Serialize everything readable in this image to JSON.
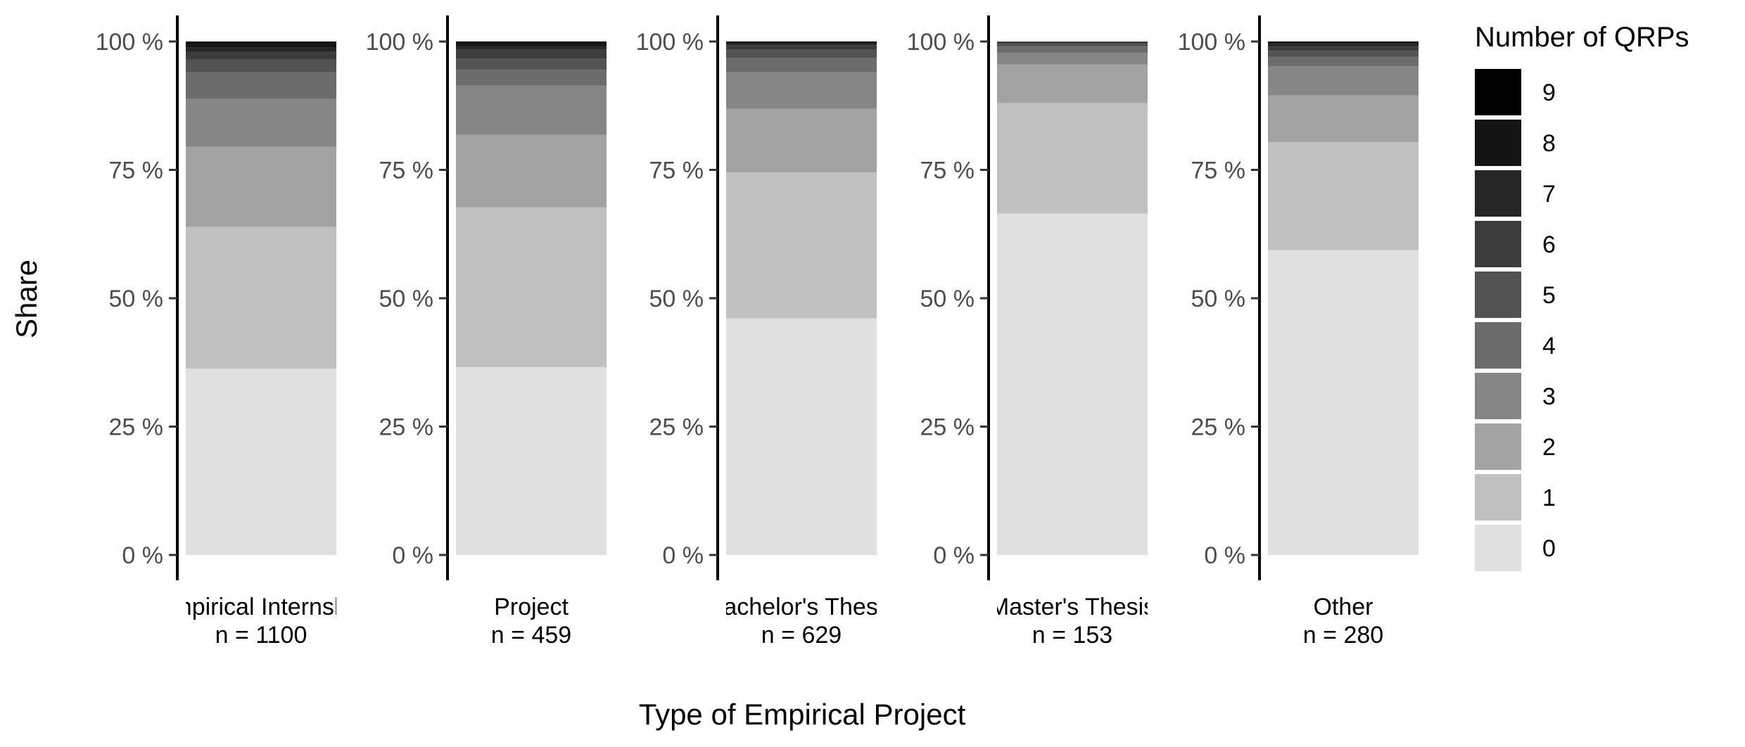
{
  "chart_data": {
    "type": "bar",
    "stacked": true,
    "xlabel": "Type of Empirical Project",
    "ylabel": "Share",
    "ylim": [
      0,
      100
    ],
    "y_ticks": [
      "0 %",
      "25 %",
      "50 %",
      "75 %",
      "100 %"
    ],
    "y_tick_values": [
      0,
      25,
      50,
      75,
      100
    ],
    "legend": {
      "title": "Number of QRPs",
      "placement": "right",
      "labels": [
        "9",
        "8",
        "7",
        "6",
        "5",
        "4",
        "3",
        "2",
        "1",
        "0"
      ]
    },
    "stack_order": [
      "0",
      "1",
      "2",
      "3",
      "4",
      "5",
      "6",
      "7",
      "8",
      "9"
    ],
    "colors": {
      "0": "#e0e0e0",
      "1": "#c0c0c0",
      "2": "#a3a3a3",
      "3": "#868686",
      "4": "#6c6c6c",
      "5": "#535353",
      "6": "#3c3c3c",
      "7": "#262626",
      "8": "#141414",
      "9": "#000000"
    },
    "facets": [
      {
        "label": "Empirical Internship",
        "n_label": "n = 1100",
        "shares": {
          "0": 36.3,
          "1": 27.6,
          "2": 15.6,
          "3": 9.3,
          "4": 5.2,
          "5": 2.5,
          "6": 1.5,
          "7": 0.9,
          "8": 0.6,
          "9": 0.5
        }
      },
      {
        "label": "Project",
        "n_label": "n = 459",
        "shares": {
          "0": 36.6,
          "1": 31.1,
          "2": 14.1,
          "3": 9.6,
          "4": 3.1,
          "5": 2.2,
          "6": 1.7,
          "7": 0.7,
          "8": 0.4,
          "9": 0.5
        }
      },
      {
        "label": "Bachelor's Thesis",
        "n_label": "n = 629",
        "shares": {
          "0": 46.1,
          "1": 28.4,
          "2": 12.4,
          "3": 7.1,
          "4": 2.8,
          "5": 1.6,
          "6": 0.9,
          "7": 0.3,
          "8": 0.2,
          "9": 0.2
        }
      },
      {
        "label": "Master's Thesis",
        "n_label": "n = 153",
        "shares": {
          "0": 66.5,
          "1": 21.5,
          "2": 7.5,
          "3": 2.3,
          "4": 1.2,
          "5": 0.6,
          "6": 0.2,
          "7": 0.1,
          "8": 0.05,
          "9": 0.05
        }
      },
      {
        "label": "Other",
        "n_label": "n = 280",
        "shares": {
          "0": 59.4,
          "1": 21.0,
          "2": 9.1,
          "3": 5.7,
          "4": 1.8,
          "5": 1.2,
          "6": 0.8,
          "7": 0.5,
          "8": 0.3,
          "9": 0.2
        }
      }
    ]
  }
}
